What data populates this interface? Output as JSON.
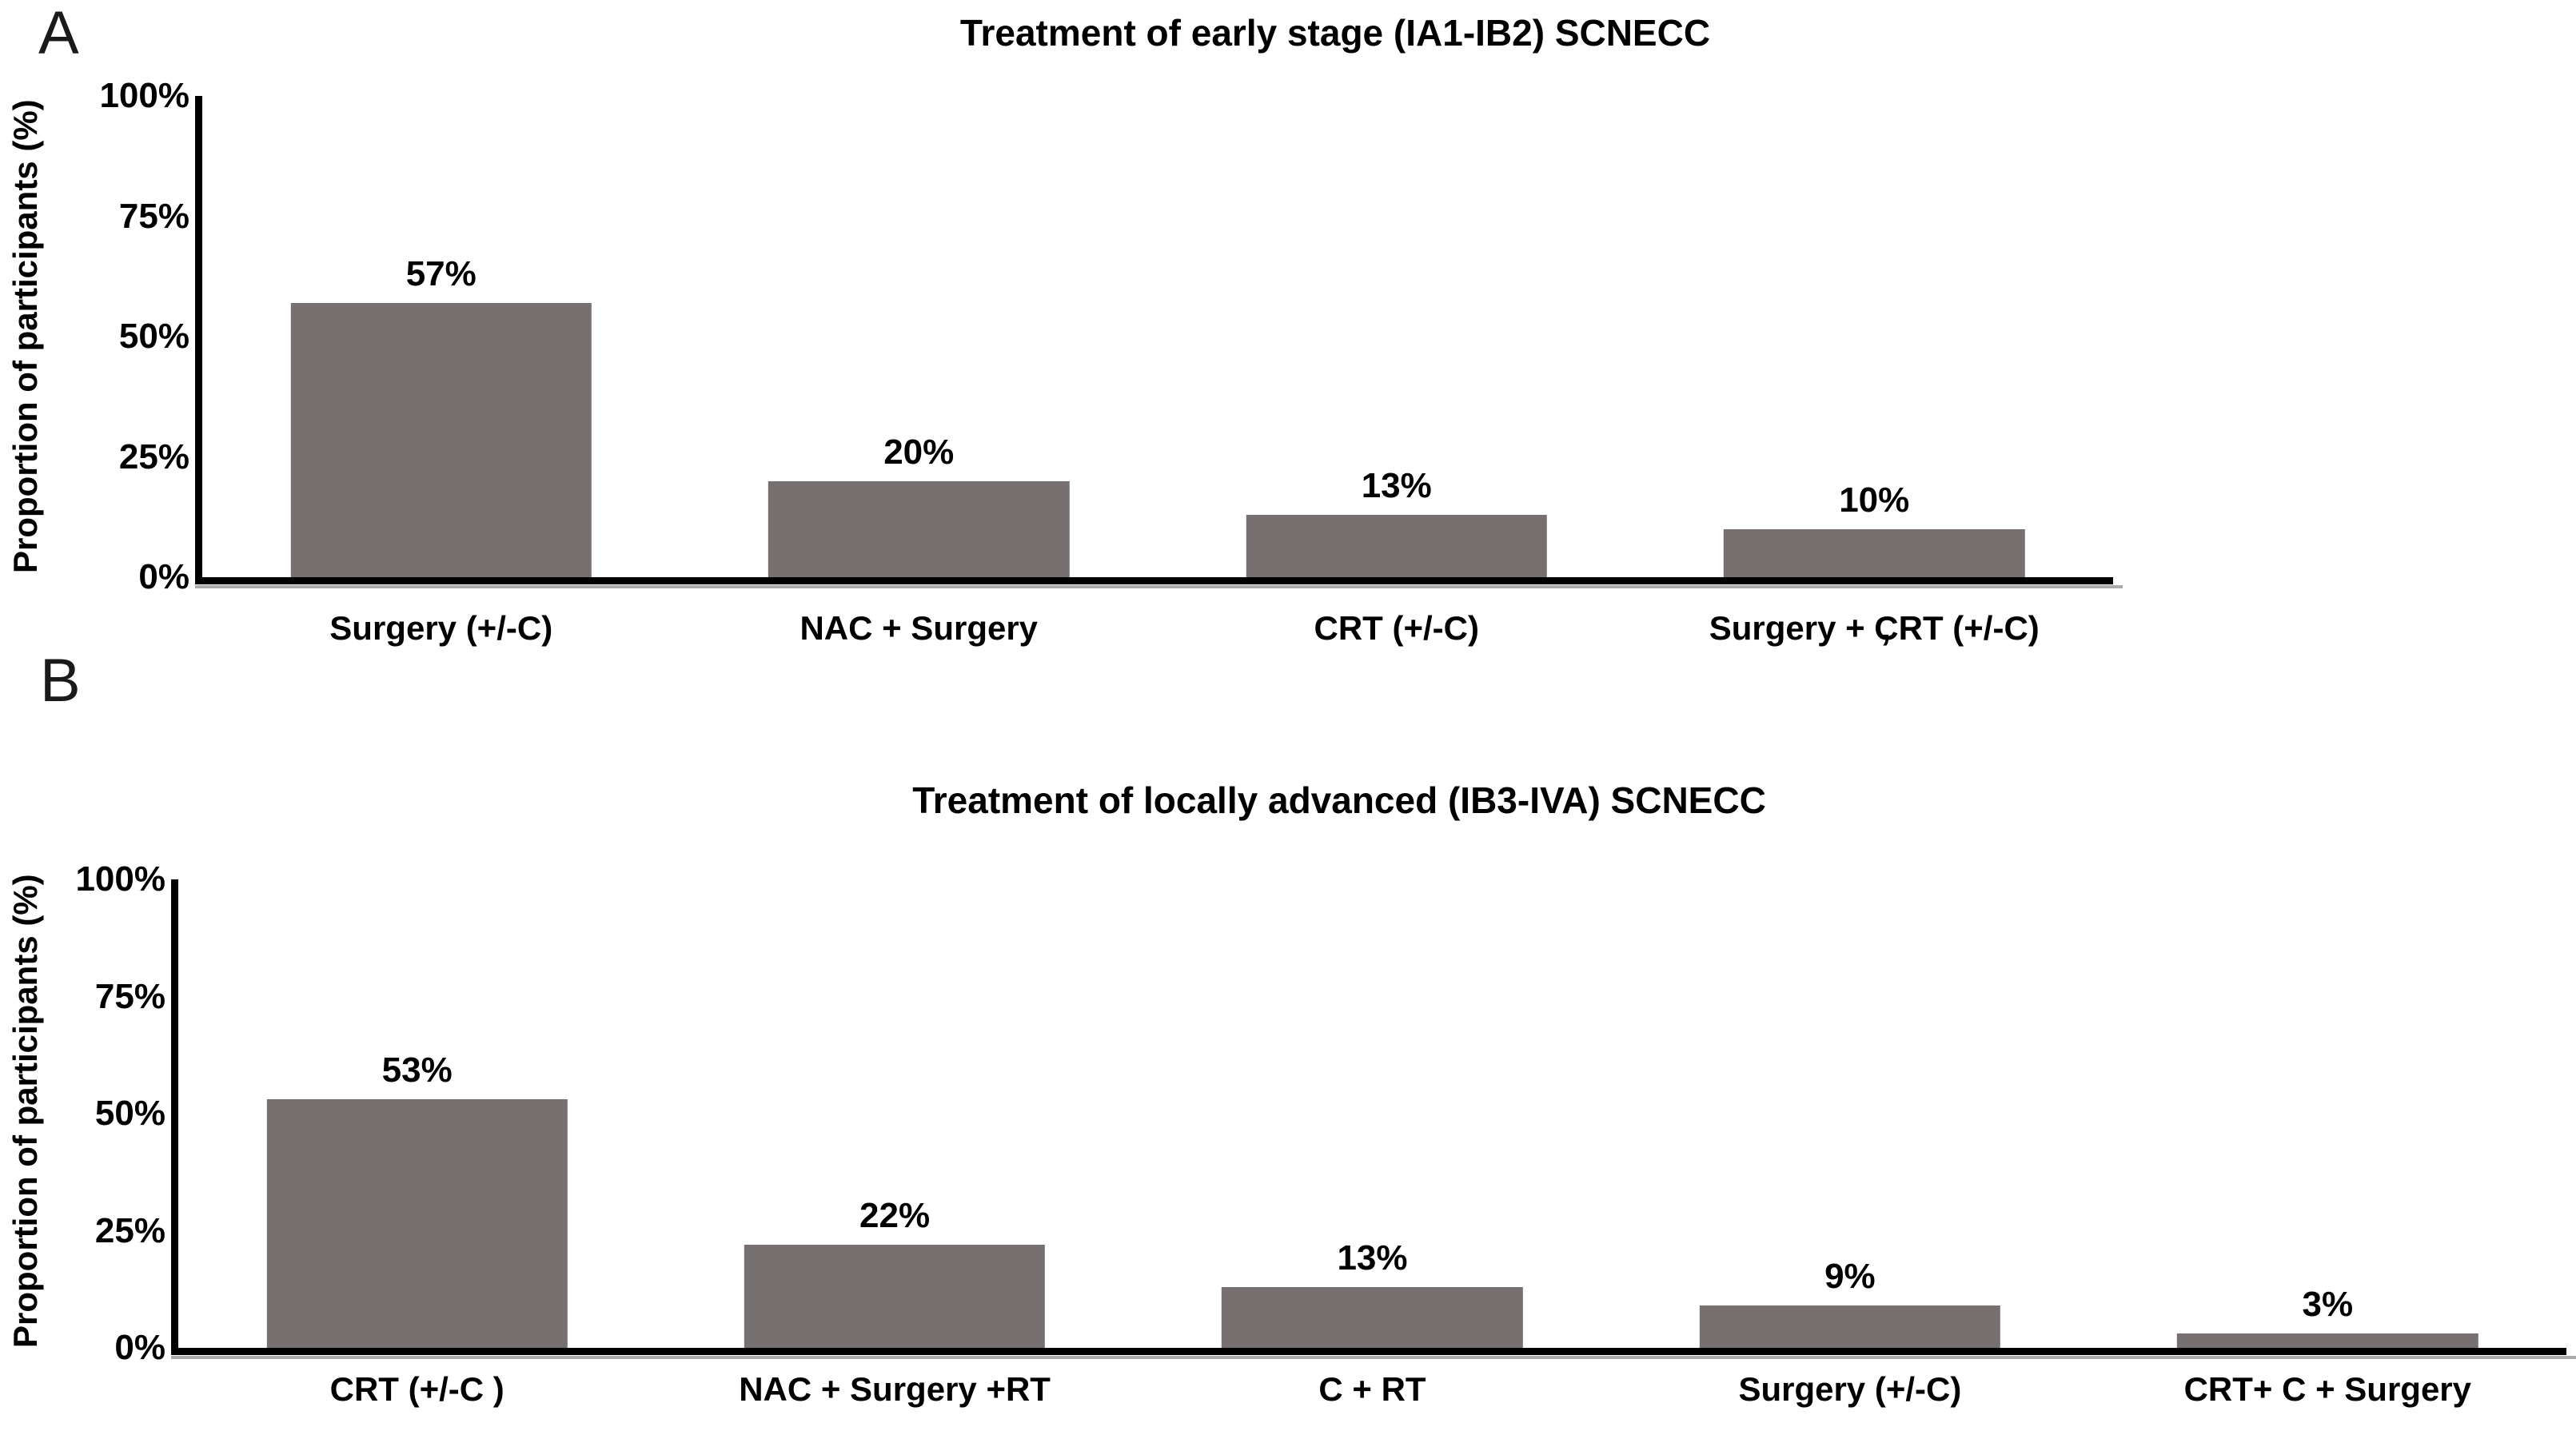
{
  "figure": {
    "background": "#ffffff"
  },
  "panels": [
    {
      "letter": "A"
    },
    {
      "letter": "B"
    }
  ],
  "chart_data": [
    {
      "type": "bar",
      "title": "Treatment of early stage (IA1-IB2) SCNECC",
      "ylabel": "Proportion of participants (%)",
      "xlabel": "",
      "categories": [
        "Surgery (+/-C)",
        "NAC + Surgery",
        "CRT (+/-C)",
        "Surgery + CRT (+/-C)"
      ],
      "values": [
        57,
        20,
        13,
        10
      ],
      "value_labels": [
        "57%",
        "20%",
        "13%",
        "10%"
      ],
      "ylim": [
        0,
        100
      ],
      "yticks": [
        "0%",
        "25%",
        "50%",
        "75%",
        "100%"
      ],
      "grid": false,
      "legend": null
    },
    {
      "type": "bar",
      "title": "Treatment of locally advanced (IB3-IVA) SCNECC",
      "ylabel": "Proportion of participants (%)",
      "xlabel": "",
      "categories": [
        "CRT (+/-C )",
        "NAC + Surgery +RT",
        "C + RT",
        "Surgery (+/-C)",
        "CRT+ C + Surgery"
      ],
      "values": [
        53,
        22,
        13,
        9,
        3
      ],
      "value_labels": [
        "53%",
        "22%",
        "13%",
        "9%",
        "3%"
      ],
      "ylim": [
        0,
        100
      ],
      "yticks": [
        "0%",
        "25%",
        "50%",
        "75%",
        "100%"
      ],
      "grid": false,
      "legend": null
    }
  ],
  "stray_mark": "’",
  "colors": {
    "bar": "#767071",
    "axis": "#000000",
    "axis_shadow": "#ababab",
    "text": "#000000",
    "background": "#ffffff"
  }
}
